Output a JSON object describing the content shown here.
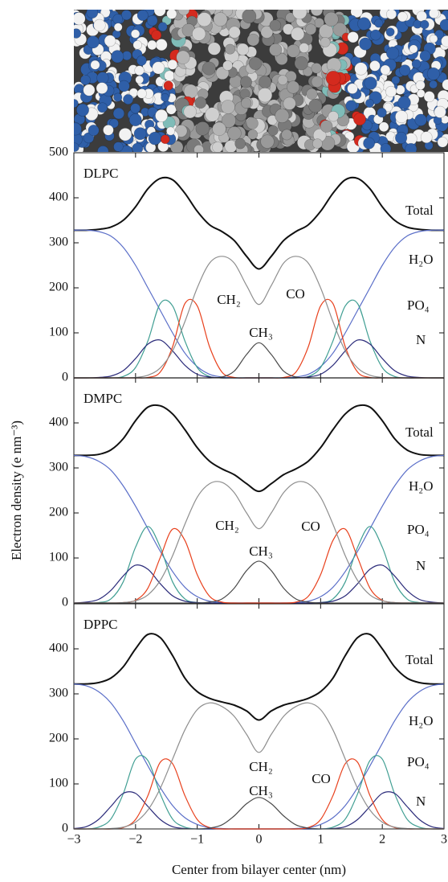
{
  "chart_data": [
    {
      "type": "line",
      "title": "DLPC",
      "x": [
        -3,
        -2.8,
        -2.6,
        -2.4,
        -2.2,
        -2,
        -1.8,
        -1.6,
        -1.4,
        -1.2,
        -1,
        -0.8,
        -0.6,
        -0.4,
        -0.2,
        0,
        0.2,
        0.4,
        0.6,
        0.8,
        1,
        1.2,
        1.4,
        1.6,
        1.8,
        2,
        2.2,
        2.4,
        2.6,
        2.8,
        3
      ],
      "xlim": [
        -3,
        3
      ],
      "ylim": [
        0,
        500
      ],
      "yticks": [
        0,
        100,
        200,
        300,
        400,
        500
      ],
      "series": [
        {
          "name": "Total",
          "color": "#111111",
          "values": [
            328,
            328,
            330,
            335,
            350,
            380,
            420,
            443,
            440,
            410,
            370,
            340,
            325,
            305,
            270,
            242,
            270,
            305,
            325,
            340,
            370,
            410,
            440,
            443,
            420,
            380,
            350,
            335,
            330,
            328,
            328
          ]
        },
        {
          "name": "H₂O",
          "color": "#5a6ec8",
          "values": [
            328,
            328,
            325,
            315,
            290,
            250,
            200,
            150,
            100,
            55,
            25,
            8,
            2,
            0,
            0,
            0,
            0,
            0,
            2,
            8,
            25,
            55,
            100,
            150,
            200,
            250,
            290,
            315,
            325,
            328,
            328
          ]
        },
        {
          "name": "PO₄",
          "color": "#3f9e92",
          "values": [
            0,
            0,
            0,
            0,
            3,
            23,
            82,
            165,
            160,
            82,
            23,
            3,
            0,
            0,
            0,
            0,
            0,
            0,
            0,
            3,
            23,
            82,
            160,
            165,
            82,
            23,
            3,
            0,
            0,
            0,
            0
          ]
        },
        {
          "name": "N",
          "color": "#2b2b7a",
          "values": [
            0,
            0,
            1,
            4,
            16,
            43,
            75,
            84,
            60,
            28,
            8,
            2,
            0,
            0,
            0,
            0,
            0,
            0,
            0,
            2,
            8,
            28,
            60,
            84,
            75,
            43,
            16,
            4,
            1,
            0,
            0
          ]
        },
        {
          "name": "CO",
          "color": "#e8401c",
          "values": [
            0,
            0,
            0,
            0,
            0,
            0,
            1,
            13,
            69,
            165,
            160,
            69,
            13,
            1,
            0,
            0,
            0,
            1,
            13,
            69,
            160,
            165,
            69,
            13,
            1,
            0,
            0,
            0,
            0,
            0,
            0
          ]
        },
        {
          "name": "CH₂",
          "color": "#8e8e8e",
          "values": [
            0,
            0,
            0,
            0,
            0,
            1,
            6,
            22,
            60,
            125,
            200,
            255,
            270,
            255,
            205,
            163,
            205,
            255,
            270,
            255,
            200,
            125,
            60,
            22,
            6,
            1,
            0,
            0,
            0,
            0,
            0
          ]
        },
        {
          "name": "CH₃",
          "color": "#4a4a4a",
          "values": [
            0,
            0,
            0,
            0,
            0,
            0,
            0,
            0,
            0,
            0,
            0,
            0,
            2,
            15,
            52,
            78,
            52,
            15,
            2,
            0,
            0,
            0,
            0,
            0,
            0,
            0,
            0,
            0,
            0,
            0,
            0
          ]
        }
      ]
    },
    {
      "type": "line",
      "title": "DMPC",
      "ylabel": "Electron density (e nm⁻³)",
      "x": [
        -3,
        -2.8,
        -2.6,
        -2.4,
        -2.2,
        -2,
        -1.8,
        -1.6,
        -1.4,
        -1.2,
        -1,
        -0.8,
        -0.6,
        -0.4,
        -0.2,
        0,
        0.2,
        0.4,
        0.6,
        0.8,
        1,
        1.2,
        1.4,
        1.6,
        1.8,
        2,
        2.2,
        2.4,
        2.6,
        2.8,
        3
      ],
      "xlim": [
        -3,
        3
      ],
      "ylim": [
        0,
        500
      ],
      "yticks": [
        0,
        100,
        200,
        300,
        400
      ],
      "series": [
        {
          "name": "Total",
          "color": "#111111",
          "values": [
            328,
            328,
            330,
            340,
            365,
            405,
            435,
            438,
            420,
            385,
            345,
            315,
            298,
            285,
            265,
            248,
            265,
            285,
            298,
            315,
            345,
            385,
            420,
            438,
            435,
            405,
            365,
            340,
            330,
            328,
            328
          ]
        },
        {
          "name": "H₂O",
          "color": "#5a6ec8",
          "values": [
            328,
            325,
            315,
            295,
            260,
            215,
            165,
            115,
            70,
            35,
            14,
            4,
            1,
            0,
            0,
            0,
            0,
            0,
            1,
            4,
            14,
            35,
            70,
            115,
            165,
            215,
            260,
            295,
            315,
            325,
            328
          ]
        },
        {
          "name": "PO₄",
          "color": "#3f9e92",
          "values": [
            0,
            0,
            1,
            9,
            47,
            124,
            170,
            124,
            47,
            9,
            1,
            0,
            0,
            0,
            0,
            0,
            0,
            0,
            0,
            0,
            1,
            9,
            47,
            124,
            170,
            124,
            47,
            9,
            1,
            0,
            0
          ]
        },
        {
          "name": "N",
          "color": "#2b2b7a",
          "values": [
            0,
            2,
            8,
            28,
            60,
            84,
            75,
            43,
            16,
            4,
            1,
            0,
            0,
            0,
            0,
            0,
            0,
            0,
            0,
            0,
            1,
            4,
            16,
            43,
            75,
            84,
            60,
            28,
            8,
            2,
            0
          ]
        },
        {
          "name": "CO",
          "color": "#e8401c",
          "values": [
            0,
            0,
            0,
            0,
            1,
            6,
            33,
            101,
            164,
            139,
            63,
            15,
            2,
            0,
            0,
            0,
            0,
            0,
            2,
            15,
            63,
            139,
            164,
            101,
            33,
            6,
            1,
            0,
            0,
            0,
            0
          ]
        },
        {
          "name": "CH₂",
          "color": "#8e8e8e",
          "values": [
            0,
            0,
            0,
            0,
            1,
            5,
            18,
            50,
            105,
            175,
            235,
            265,
            268,
            245,
            200,
            165,
            200,
            245,
            268,
            265,
            235,
            175,
            105,
            50,
            18,
            5,
            1,
            0,
            0,
            0,
            0
          ]
        },
        {
          "name": "CH₃",
          "color": "#4a4a4a",
          "values": [
            0,
            0,
            0,
            0,
            0,
            0,
            0,
            0,
            0,
            0,
            0,
            2,
            9,
            33,
            72,
            93,
            72,
            33,
            9,
            2,
            0,
            0,
            0,
            0,
            0,
            0,
            0,
            0,
            0,
            0,
            0
          ]
        }
      ]
    },
    {
      "type": "line",
      "title": "DPPC",
      "xlabel": "Center from bilayer center (nm)",
      "x": [
        -3,
        -2.8,
        -2.6,
        -2.4,
        -2.2,
        -2,
        -1.8,
        -1.6,
        -1.4,
        -1.2,
        -1,
        -0.8,
        -0.6,
        -0.4,
        -0.2,
        0,
        0.2,
        0.4,
        0.6,
        0.8,
        1,
        1.2,
        1.4,
        1.6,
        1.8,
        2,
        2.2,
        2.4,
        2.6,
        2.8,
        3
      ],
      "xlim": [
        -3,
        3
      ],
      "ylim": [
        0,
        500
      ],
      "yticks": [
        0,
        100,
        200,
        300,
        400
      ],
      "xticks": [
        {
          "value": -3,
          "label": "−3"
        },
        {
          "value": -2,
          "label": "−2"
        },
        {
          "value": -1,
          "label": "−1"
        },
        0,
        1,
        2,
        3
      ],
      "series": [
        {
          "name": "Total",
          "color": "#111111",
          "values": [
            322,
            322,
            325,
            335,
            360,
            400,
            432,
            425,
            385,
            335,
            305,
            290,
            282,
            275,
            262,
            242,
            262,
            275,
            282,
            290,
            305,
            335,
            385,
            425,
            432,
            400,
            360,
            335,
            325,
            322,
            322
          ]
        },
        {
          "name": "H₂O",
          "color": "#5a6ec8",
          "values": [
            322,
            318,
            305,
            280,
            240,
            190,
            140,
            92,
            52,
            25,
            10,
            3,
            1,
            0,
            0,
            0,
            0,
            0,
            1,
            3,
            10,
            25,
            52,
            92,
            140,
            190,
            240,
            280,
            305,
            318,
            322
          ]
        },
        {
          "name": "PO₄",
          "color": "#3f9e92",
          "values": [
            0,
            0,
            4,
            22,
            78,
            155,
            152,
            78,
            22,
            4,
            0,
            0,
            0,
            0,
            0,
            0,
            0,
            0,
            0,
            0,
            0,
            4,
            22,
            78,
            152,
            155,
            78,
            22,
            4,
            0,
            0
          ]
        },
        {
          "name": "N",
          "color": "#2b2b7a",
          "values": [
            1,
            5,
            21,
            50,
            79,
            79,
            50,
            21,
            5,
            1,
            0,
            0,
            0,
            0,
            0,
            0,
            0,
            0,
            0,
            0,
            0,
            1,
            5,
            21,
            50,
            79,
            79,
            50,
            21,
            5,
            1
          ]
        },
        {
          "name": "CO",
          "color": "#e8401c",
          "values": [
            0,
            0,
            0,
            0,
            3,
            21,
            74,
            148,
            145,
            74,
            21,
            3,
            0,
            0,
            0,
            0,
            0,
            0,
            0,
            3,
            21,
            74,
            145,
            148,
            74,
            21,
            3,
            0,
            0,
            0,
            0
          ]
        },
        {
          "name": "CH₂",
          "color": "#8e8e8e",
          "values": [
            0,
            0,
            0,
            1,
            4,
            15,
            42,
            90,
            155,
            220,
            265,
            280,
            272,
            250,
            210,
            170,
            210,
            250,
            272,
            280,
            265,
            220,
            155,
            90,
            42,
            15,
            4,
            1,
            0,
            0,
            0
          ]
        },
        {
          "name": "CH₃",
          "color": "#4a4a4a",
          "values": [
            0,
            0,
            0,
            0,
            0,
            0,
            0,
            0,
            0,
            0,
            0,
            2,
            9,
            29,
            56,
            70,
            56,
            29,
            9,
            2,
            0,
            0,
            0,
            0,
            0,
            0,
            0,
            0,
            0,
            0,
            0
          ]
        }
      ]
    }
  ]
}
